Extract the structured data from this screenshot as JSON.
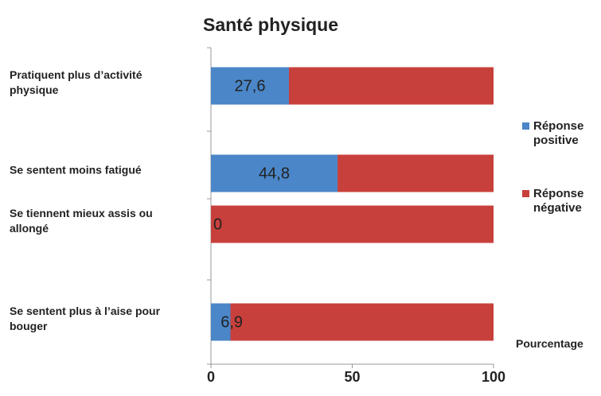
{
  "chart_data": {
    "type": "stacked-bar-horizontal",
    "title": "Santé physique",
    "categories": [
      "Pratiquent plus d’activité physique",
      "Se sentent moins fatigué",
      "Se tiennent mieux assis ou allongé",
      "Se sentent plus à l’aise pour bouger"
    ],
    "series": [
      {
        "name": "Réponse positive",
        "color": "#4a86c8",
        "values": [
          27.6,
          44.8,
          0,
          6.9
        ],
        "value_labels": [
          "27,6",
          "44,8",
          "0",
          "6,9"
        ]
      },
      {
        "name": "Réponse négative",
        "color": "#c8403b",
        "values": [
          72.4,
          55.2,
          100,
          93.1
        ]
      }
    ],
    "xlim": [
      0,
      100
    ],
    "xticks": [
      0,
      50,
      100
    ],
    "xlabel": "Pourcentage",
    "legend": "right"
  }
}
